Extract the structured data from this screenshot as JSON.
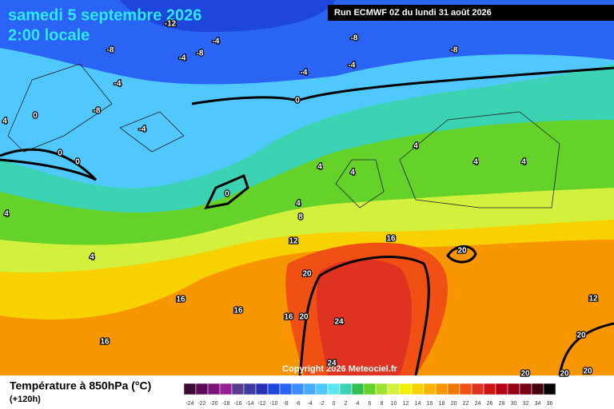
{
  "header": {
    "title": "samedi 5 septembre 2026",
    "subtitle": "2:00 locale",
    "run": "Run ECMWF 0Z du lundi 31 août 2026"
  },
  "map": {
    "copyright": "Copyright 2026 Meteociel.fr",
    "contour_labels": [
      "-12",
      "-8",
      "-4",
      "-8",
      "-4",
      "-8",
      "-8",
      "-4",
      "-4",
      "-4",
      "0",
      "-8",
      "-4",
      "0",
      "4",
      "0",
      "0",
      "4",
      "4",
      "4",
      "4",
      "4",
      "0",
      "4",
      "8",
      "4",
      "12",
      "16",
      "20",
      "4",
      "20",
      "16",
      "16",
      "16",
      "20",
      "24",
      "12",
      "16",
      "20",
      "24",
      "20",
      "20",
      "20"
    ]
  },
  "legend": {
    "title": "Température à 850hPa (°C)",
    "lead": "(+120h)",
    "ticks": [
      -24,
      -22,
      -20,
      -18,
      -16,
      -14,
      -12,
      -10,
      -8,
      -6,
      -4,
      -2,
      0,
      2,
      4,
      6,
      8,
      10,
      12,
      14,
      16,
      18,
      20,
      22,
      24,
      26,
      28,
      30,
      32,
      34,
      36
    ],
    "colors": [
      "#3c0a34",
      "#5a0a56",
      "#7a1478",
      "#962096",
      "#5a3c8c",
      "#3c3ca0",
      "#2830b4",
      "#1e46dc",
      "#2a64f4",
      "#3c8cff",
      "#46aaff",
      "#50c8ff",
      "#5ae6f0",
      "#3cd2b4",
      "#32be50",
      "#64d228",
      "#a0e132",
      "#d2f03c",
      "#f0f000",
      "#f8d200",
      "#f8b400",
      "#f89600",
      "#f07800",
      "#f05014",
      "#e03220",
      "#d01414",
      "#b40014",
      "#960014",
      "#780014",
      "#460010",
      "#000000"
    ]
  }
}
